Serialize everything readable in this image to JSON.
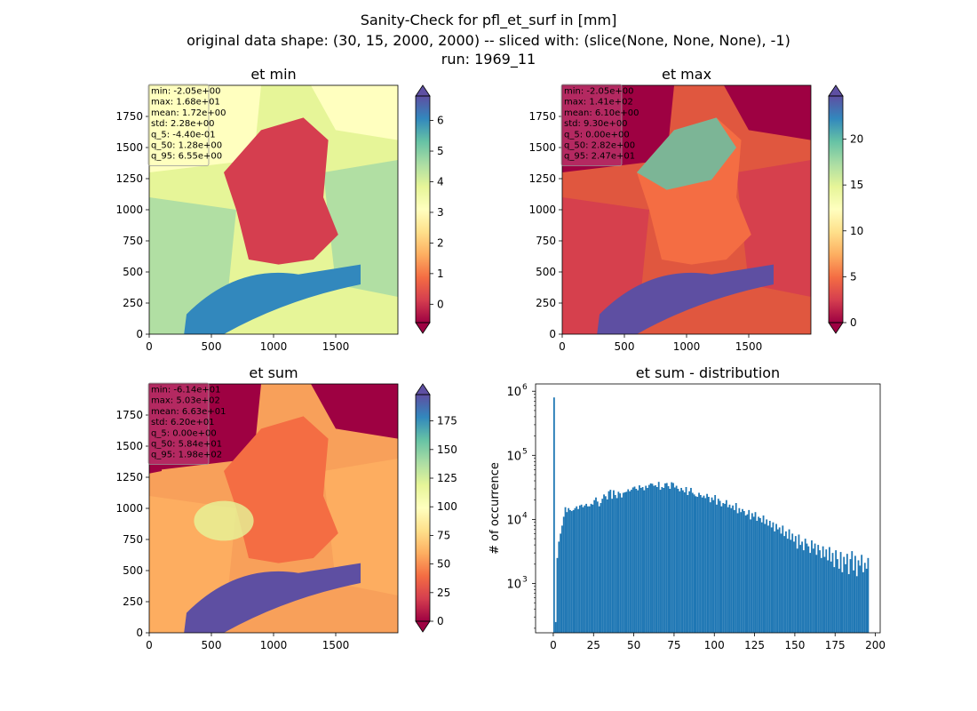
{
  "figure": {
    "title_line1": "Sanity-Check for pfl_et_surf in [mm]",
    "title_line2": "original data shape: (30, 15, 2000, 2000) -- sliced with: (slice(None, None, None), -1)",
    "title_line3": "run: 1969_11"
  },
  "colormap": {
    "name": "Spectral",
    "stops": [
      "#9e0142",
      "#d53e4f",
      "#f46d43",
      "#fdae61",
      "#fee08b",
      "#ffffbf",
      "#e6f598",
      "#abdda4",
      "#66c2a5",
      "#3288bd",
      "#5e4fa2"
    ]
  },
  "chart_data": [
    {
      "type": "heatmap",
      "title": "et min",
      "xlim": [
        0,
        2000
      ],
      "ylim": [
        0,
        2000
      ],
      "x_ticks": [
        "0",
        "500",
        "1000",
        "1500"
      ],
      "y_ticks": [
        "0",
        "250",
        "500",
        "750",
        "1000",
        "1250",
        "1500",
        "1750"
      ],
      "colorbar": {
        "range": [
          -0.6,
          6.8
        ],
        "extend": "both",
        "ticks": [
          "0",
          "1",
          "2",
          "3",
          "4",
          "5",
          "6"
        ]
      },
      "stats_box": [
        "min: -2.05e+00",
        "max: 1.68e+01",
        "mean: 1.72e+00",
        "std: 2.28e+00",
        "q_5: -4.40e-01",
        "q_50: 1.28e+00",
        "q_95: 6.55e+00"
      ],
      "stats_box_color": "#ffffbf"
    },
    {
      "type": "heatmap",
      "title": "et max",
      "xlim": [
        0,
        2000
      ],
      "ylim": [
        0,
        2000
      ],
      "x_ticks": [
        "0",
        "500",
        "1000",
        "1500"
      ],
      "y_ticks": [
        "0",
        "250",
        "500",
        "750",
        "1000",
        "1250",
        "1500",
        "1750"
      ],
      "colorbar": {
        "range": [
          0,
          24.7
        ],
        "extend": "both",
        "ticks": [
          "0",
          "5",
          "10",
          "15",
          "20"
        ]
      },
      "stats_box": [
        "min: -2.05e+00",
        "max: 1.41e+02",
        "mean: 6.10e+00",
        "std: 9.30e+00",
        "q_5: 0.00e+00",
        "q_50: 2.82e+00",
        "q_95: 2.47e+01"
      ],
      "stats_box_color": "#c64a7c"
    },
    {
      "type": "heatmap",
      "title": "et sum",
      "xlim": [
        0,
        2000
      ],
      "ylim": [
        0,
        2000
      ],
      "x_ticks": [
        "0",
        "500",
        "1000",
        "1500"
      ],
      "y_ticks": [
        "0",
        "250",
        "500",
        "750",
        "1000",
        "1250",
        "1500",
        "1750"
      ],
      "colorbar": {
        "range": [
          0,
          198
        ],
        "extend": "both",
        "ticks": [
          "0",
          "25",
          "50",
          "75",
          "100",
          "125",
          "150",
          "175"
        ]
      },
      "stats_box": [
        "min: -6.14e+01",
        "max: 5.03e+02",
        "mean: 6.63e+01",
        "std: 6.20e+01",
        "q_5: 0.00e+00",
        "q_50: 5.84e+01",
        "q_95: 1.98e+02"
      ],
      "stats_box_color": "#c64a7c"
    },
    {
      "type": "bar",
      "title": "et sum - distribution",
      "ylabel": "# of occurrence",
      "xlabel": "",
      "y_scale": "log",
      "xlim": [
        -11,
        203
      ],
      "ylim": [
        170,
        1300000
      ],
      "x_ticks": [
        "0",
        "25",
        "50",
        "75",
        "100",
        "125",
        "150",
        "175",
        "200"
      ],
      "y_tick_labels": [
        "10",
        "10",
        "10",
        "10"
      ],
      "y_tick_exponents": [
        "3",
        "4",
        "5",
        "6"
      ],
      "y_tick_values": [
        1000,
        10000,
        100000,
        1000000
      ],
      "bin_start": 0,
      "bin_width": 1,
      "color": "#1f77b4",
      "values": [
        800000,
        250,
        2500,
        4500,
        6000,
        8000,
        11000,
        15500,
        13000,
        15000,
        14000,
        13500,
        14000,
        15000,
        16000,
        14500,
        16500,
        17000,
        15500,
        16500,
        17500,
        16000,
        16000,
        17500,
        17000,
        20000,
        22000,
        19000,
        16000,
        18000,
        21000,
        24500,
        23000,
        20500,
        27500,
        29000,
        21000,
        28500,
        24000,
        21500,
        27000,
        25500,
        22000,
        26000,
        26500,
        27000,
        29500,
        27500,
        29000,
        31500,
        32500,
        30000,
        28500,
        34000,
        31000,
        32000,
        28500,
        33500,
        31000,
        34500,
        36500,
        36000,
        33500,
        34000,
        32000,
        38500,
        29000,
        32000,
        31000,
        36500,
        37000,
        33000,
        30000,
        38000,
        37000,
        31500,
        33500,
        30000,
        27500,
        31000,
        28500,
        26500,
        32000,
        24000,
        27500,
        31000,
        26000,
        24500,
        23000,
        22500,
        26000,
        24000,
        22000,
        23500,
        21500,
        25000,
        22500,
        18500,
        22000,
        20000,
        24000,
        17000,
        21000,
        19500,
        16000,
        18000,
        17500,
        20000,
        15500,
        17000,
        15000,
        16500,
        14000,
        18000,
        12500,
        15000,
        13000,
        14500,
        13500,
        11500,
        12000,
        14000,
        10000,
        12500,
        11000,
        13000,
        9500,
        11000,
        10500,
        9000,
        11500,
        8500,
        10000,
        8000,
        9500,
        7500,
        9000,
        6500,
        8500,
        7000,
        7500,
        6000,
        8000,
        5500,
        6500,
        5000,
        7000,
        4800,
        6000,
        4500,
        5500,
        3500,
        5800,
        4000,
        4500,
        3300,
        5000,
        4200,
        3800,
        3000,
        4700,
        3500,
        4200,
        2800,
        4000,
        3300,
        2500,
        3800,
        2600,
        3400,
        2300,
        3700,
        2200,
        3000,
        1800,
        3300,
        2400,
        1700,
        3100,
        1500,
        2600,
        2000,
        2900,
        1400,
        2400,
        3200,
        1600,
        2700,
        1300,
        2300,
        1900,
        2800,
        1500,
        2100,
        1700,
        2500
      ]
    }
  ]
}
